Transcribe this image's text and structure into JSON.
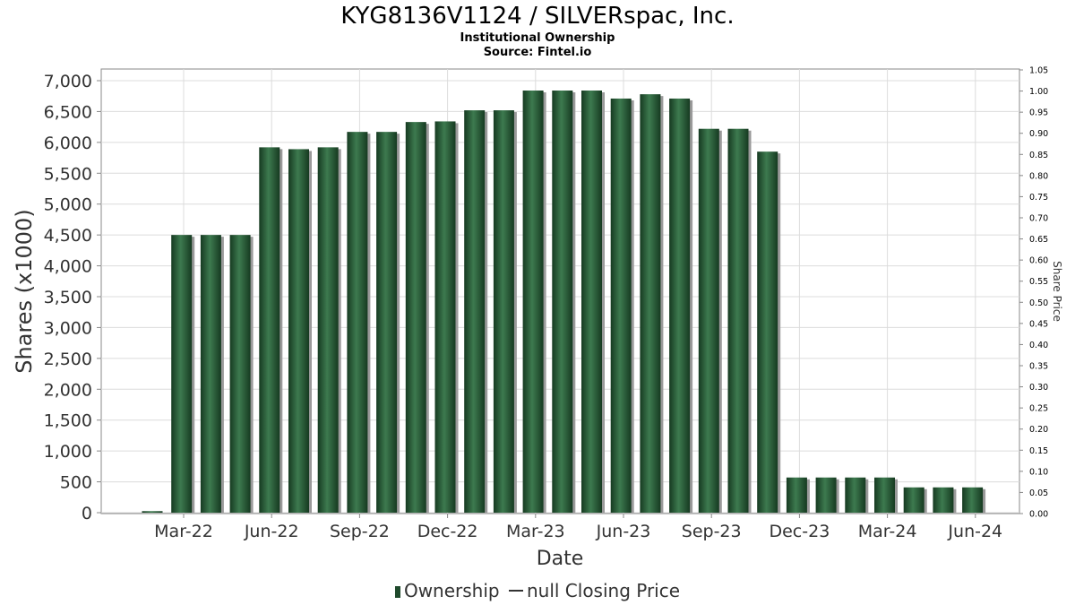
{
  "header": {
    "title": "KYG8136V1124 / SILVERspac, Inc.",
    "subtitle": "Institutional Ownership",
    "source": "Source: Fintel.io"
  },
  "legend": {
    "ownership": "Ownership",
    "price": "null Closing Price"
  },
  "colors": {
    "bar": "#1f4a2c",
    "bar_light": "#3d7a4f",
    "bar_shadow": "#9a9a9a",
    "grid": "#dcdcdc",
    "axis_text": "#333333"
  },
  "chart_data": {
    "type": "bar",
    "title": "KYG8136V1124 / SILVERspac, Inc.",
    "xlabel": "Date",
    "ylabel": "Shares (x1000)",
    "y2label": "Share Price",
    "ylim": [
      0,
      7200
    ],
    "y2lim": [
      0,
      1.05
    ],
    "yticks": [
      0,
      500,
      1000,
      1500,
      2000,
      2500,
      3000,
      3500,
      4000,
      4500,
      5000,
      5500,
      6000,
      6500,
      7000
    ],
    "yticklabels": [
      "0",
      "500",
      "1,000",
      "1,500",
      "2,000",
      "2,500",
      "3,000",
      "3,500",
      "4,000",
      "4,500",
      "5,000",
      "5,500",
      "6,000",
      "6,500",
      "7,000"
    ],
    "y2ticklabels": [
      "0.00",
      "0.05",
      "0.10",
      "0.15",
      "0.20",
      "0.25",
      "0.30",
      "0.35",
      "0.40",
      "0.45",
      "0.50",
      "0.55",
      "0.60",
      "0.65",
      "0.70",
      "0.75",
      "0.80",
      "0.85",
      "0.90",
      "0.95",
      "1.00",
      "1.05"
    ],
    "xticklabels": [
      "Mar-22",
      "Jun-22",
      "Sep-22",
      "Dec-22",
      "Mar-23",
      "Jun-23",
      "Sep-23",
      "Dec-23",
      "Mar-24",
      "Jun-24"
    ],
    "grid": true,
    "legend_position": "bottom",
    "series": [
      {
        "name": "Ownership",
        "values": [
          25,
          4500,
          4500,
          4500,
          5920,
          5890,
          5920,
          6170,
          6170,
          6330,
          6340,
          6520,
          6520,
          6840,
          6840,
          6840,
          6710,
          6780,
          6710,
          6220,
          6220,
          5850,
          570,
          570,
          570,
          570,
          410,
          410,
          410
        ]
      },
      {
        "name": "null Closing Price",
        "values": []
      }
    ]
  }
}
